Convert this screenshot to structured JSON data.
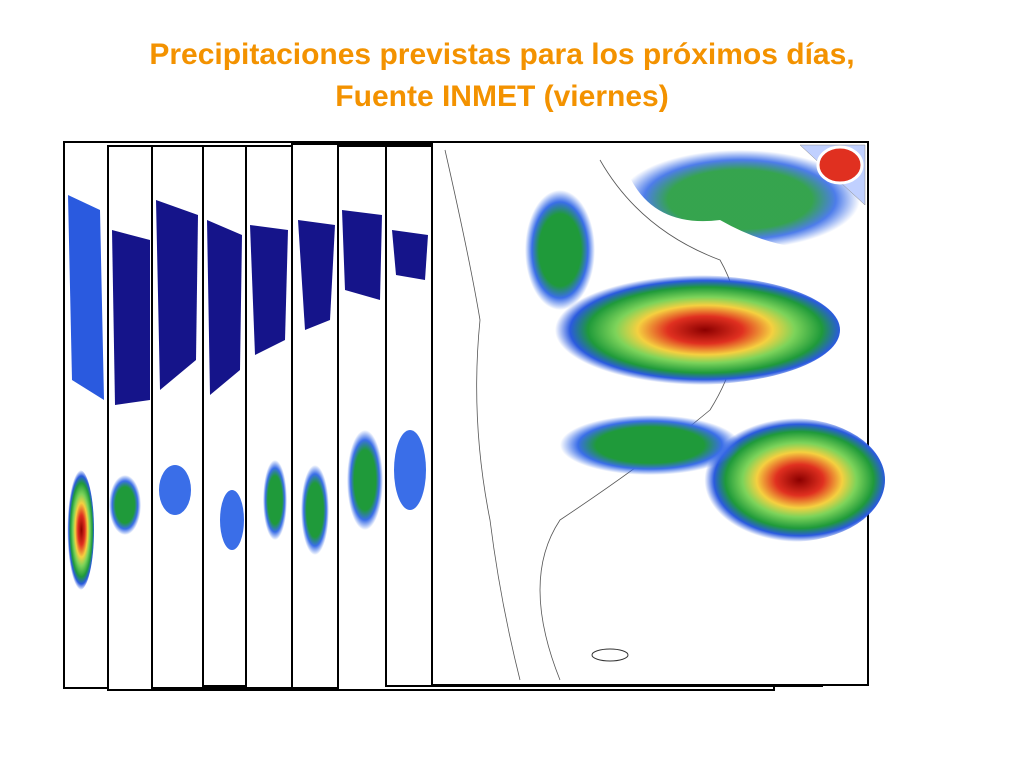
{
  "header": {
    "title_line1": "Precipitaciones previstas para los próximos días,",
    "title_line2": "Fuente INMET (viernes)"
  }
}
